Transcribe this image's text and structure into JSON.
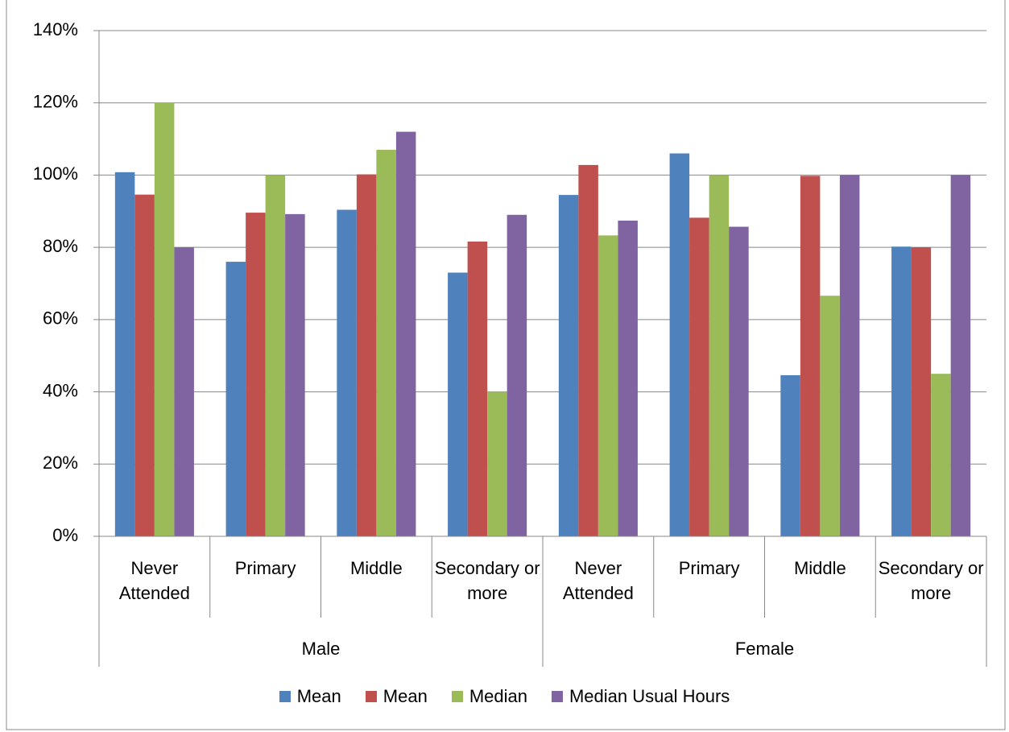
{
  "chart_data": {
    "type": "bar",
    "categories": [
      "Never Attended",
      "Primary",
      "Middle",
      "Secondary or more",
      "Never Attended",
      "Primary",
      "Middle",
      "Secondary or more"
    ],
    "groups": [
      "Male",
      "Female"
    ],
    "series": [
      {
        "name": "Mean",
        "color": "#4f81bd",
        "values": [
          100.8,
          76,
          90.4,
          73,
          94.5,
          106,
          44.6,
          80.2
        ]
      },
      {
        "name": "Mean",
        "color": "#c0504d",
        "values": [
          94.6,
          89.6,
          100.2,
          81.6,
          102.8,
          88.2,
          99.8,
          80
        ]
      },
      {
        "name": "Median",
        "color": "#9bbb59",
        "values": [
          120,
          100,
          107,
          40,
          83.3,
          100,
          66.6,
          45
        ]
      },
      {
        "name": "Median Usual Hours",
        "color": "#8064a2",
        "values": [
          80,
          89.2,
          112,
          89,
          87.4,
          85.7,
          100,
          100
        ]
      }
    ],
    "ylim": [
      0,
      140
    ],
    "yticks": [
      {
        "value": 0,
        "label": "0%"
      },
      {
        "value": 20,
        "label": "20%"
      },
      {
        "value": 40,
        "label": "40%"
      },
      {
        "value": 60,
        "label": "60%"
      },
      {
        "value": 80,
        "label": "80%"
      },
      {
        "value": 100,
        "label": "100%"
      },
      {
        "value": 120,
        "label": "120%"
      },
      {
        "value": 140,
        "label": "140%"
      }
    ],
    "grid": true,
    "legend": "bottom"
  }
}
